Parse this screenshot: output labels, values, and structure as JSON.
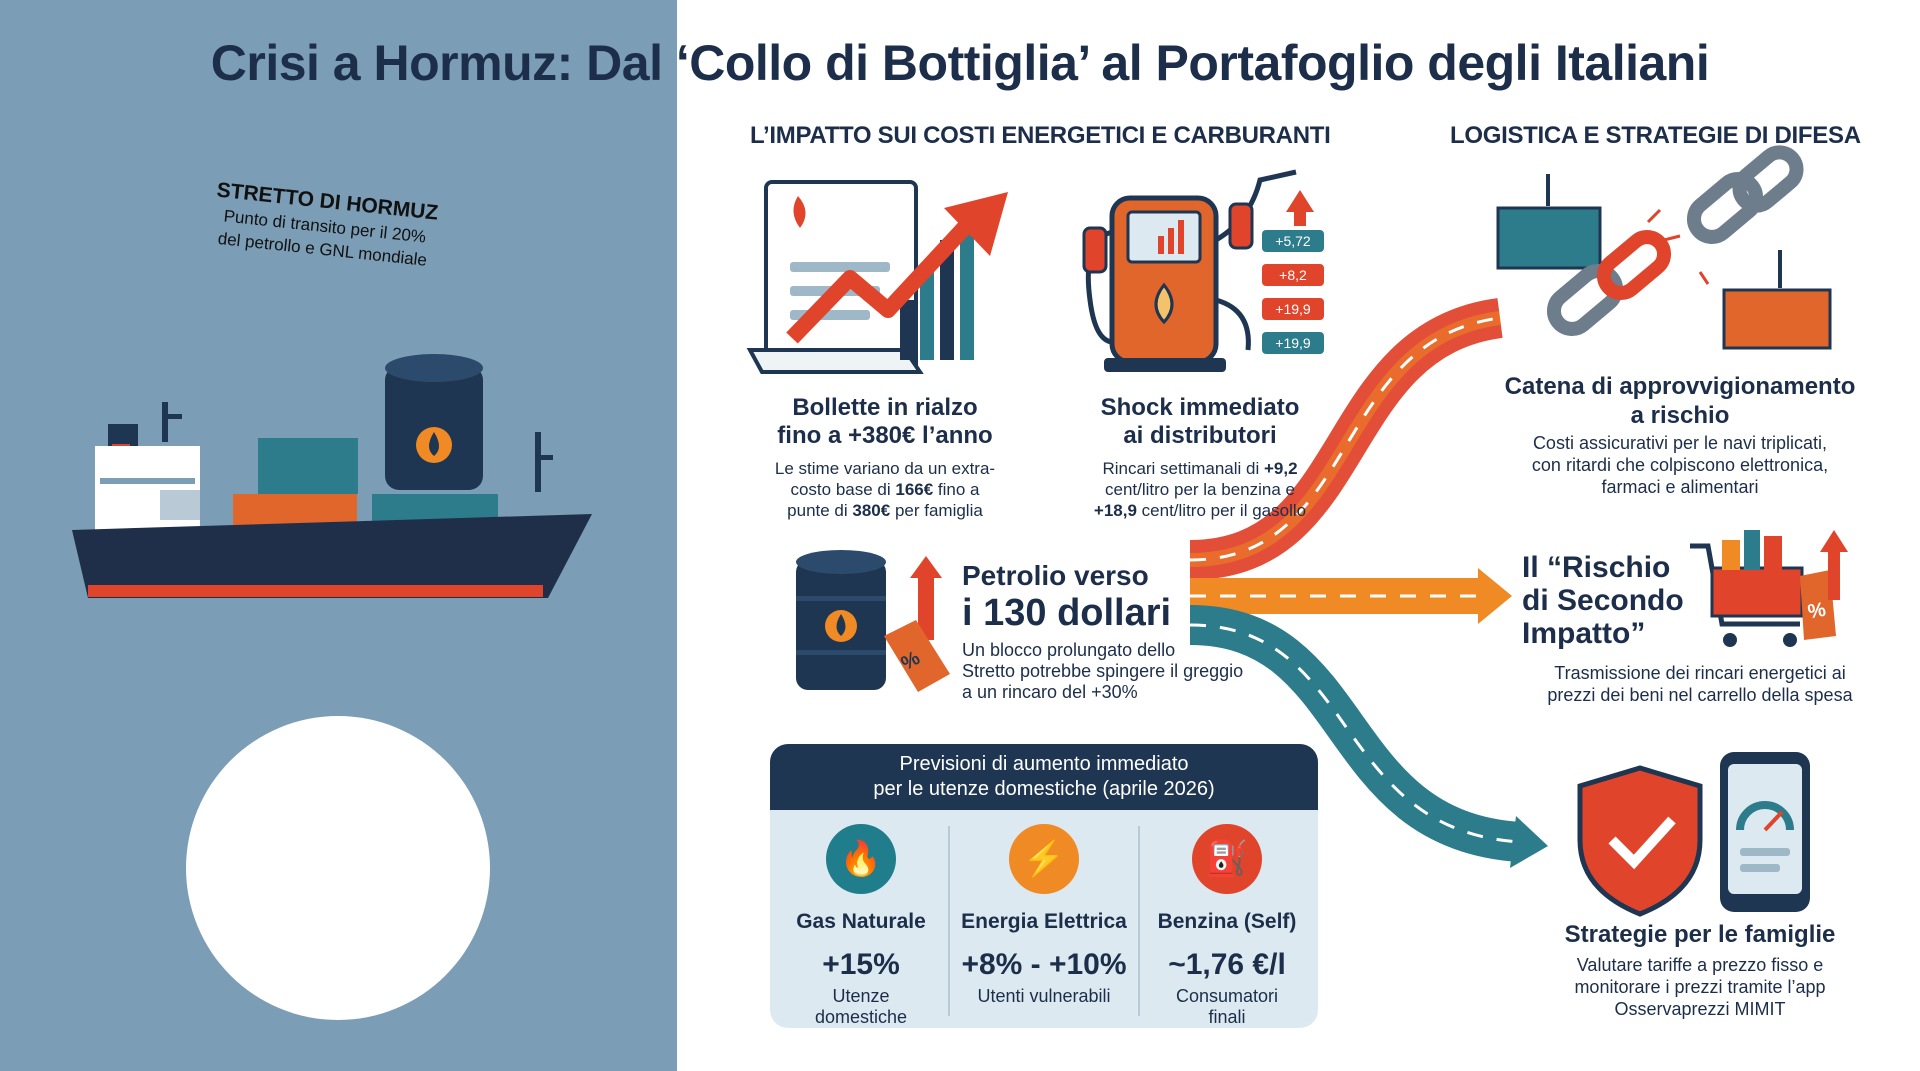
{
  "title": "Crisi a Hormuz: Dal ‘Collo di Bottiglia’ al Portafoglio degli Italiani",
  "strait": {
    "title": "STRETTO DI HORMUZ",
    "subtitle_1": "Punto di transito per il 20%",
    "subtitle_2": "del petrollo e GNL mondiale"
  },
  "sections": {
    "energy": "L’IMPATTO SUI COSTI ENERGETICI E CARBURANTI",
    "logistics": "LOGISTICA E STRATEGIE DI DIFESA"
  },
  "bills": {
    "title_1": "Bollette in rialzo",
    "title_2": "fino a +380€ l’anno",
    "text_1": "Le stime variano da un extra-",
    "text_2a": "costo base di ",
    "text_2b": "166€",
    "text_2c": " fino a",
    "text_3a": "punte di ",
    "text_3b": "380€",
    "text_3c": " per famiglia"
  },
  "pump": {
    "title_1": "Shock immediato",
    "title_2": "ai distributori",
    "text_1a": "Rincari settimanali di ",
    "text_1b": "+9,2",
    "text_2": "cent/litro per la benzina e",
    "text_3a": "+18,9",
    "text_3b": " cent/litro per il gasollo",
    "tags": [
      "+5,72",
      "+8,2",
      "+19,9",
      "+19,9"
    ]
  },
  "oil": {
    "title_1": "Petrolio verso",
    "title_2": "i 130 dollari",
    "text_1": "Un blocco prolungato dello",
    "text_2": "Stretto potrebbe spingere il greggio",
    "text_3": "a un rincaro del +30%",
    "tag": "%"
  },
  "forecast": {
    "header_1": "Previsioni di aumento immediato",
    "header_2": "per le utenze domestiche (aprile 2026)",
    "columns": [
      {
        "label": "Gas Naturale",
        "value": "+15%",
        "note_1": "Utenze",
        "note_2": "domestiche",
        "color": "#1f7d8c",
        "icon": "flame-icon"
      },
      {
        "label": "Energia Elettrica",
        "value": "+8% - +10%",
        "note_1": "Utenti vulnerabili",
        "note_2": "",
        "color": "#f08a24",
        "icon": "lightning-icon"
      },
      {
        "label": "Benzina (Self)",
        "value": "~1,76 €/l",
        "note_1": "Consumatori",
        "note_2": "finali",
        "color": "#e0452c",
        "icon": "fuel-pump-icon"
      }
    ]
  },
  "supply": {
    "title_1": "Catena di approvvigionamento",
    "title_2": "a rischio",
    "text_1": "Costi assicurativi per le navi triplicati,",
    "text_2": "con ritardi che colpiscono elettronica,",
    "text_3": "farmaci e alimentari"
  },
  "second_impact": {
    "title_1": "Il “Rischio",
    "title_2": "di Secondo",
    "title_3": "Impatto”",
    "text_1": "Trasmissione dei rincari energetici ai",
    "text_2": "prezzi dei beni nel carrello della spesa",
    "tag": "%"
  },
  "strategies": {
    "title": "Strategie per le famiglie",
    "text_1": "Valutare tariffe a prezzo fisso e",
    "text_2": "monitorare i prezzi tramite l’app",
    "text_3": "Osservaprezzi MIMIT"
  },
  "colors": {
    "left_panel": "#7b9db5",
    "navy": "#1c2e4a",
    "red": "#e0452c",
    "orange": "#f08a24",
    "teal": "#2c7c8c"
  }
}
